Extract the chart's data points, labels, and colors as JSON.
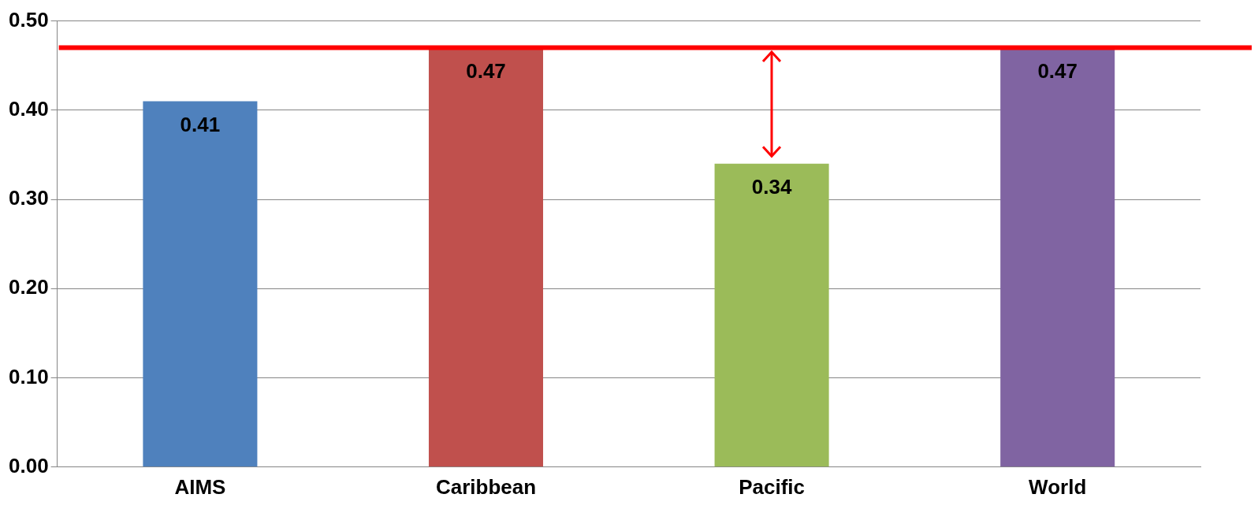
{
  "chart_data": {
    "type": "bar",
    "categories": [
      "AIMS",
      "Caribbean",
      "Pacific",
      "World"
    ],
    "values": [
      0.41,
      0.47,
      0.34,
      0.47
    ],
    "colors": [
      "#4f81bd",
      "#c0504d",
      "#9bbb59",
      "#8064a2"
    ],
    "ylim": [
      0,
      0.5
    ],
    "yticks": [
      {
        "value": 0,
        "label": "0.00"
      },
      {
        "value": 0.1,
        "label": "0.10"
      },
      {
        "value": 0.2,
        "label": "0.20"
      },
      {
        "value": 0.3,
        "label": "0.30"
      },
      {
        "value": 0.4,
        "label": "0.40"
      },
      {
        "value": 0.5,
        "label": "0.50"
      }
    ],
    "grid": "y",
    "data_labels": true,
    "ref_lines": [
      {
        "axis": "y",
        "value": 0.47,
        "color": "#ff0000"
      }
    ]
  }
}
